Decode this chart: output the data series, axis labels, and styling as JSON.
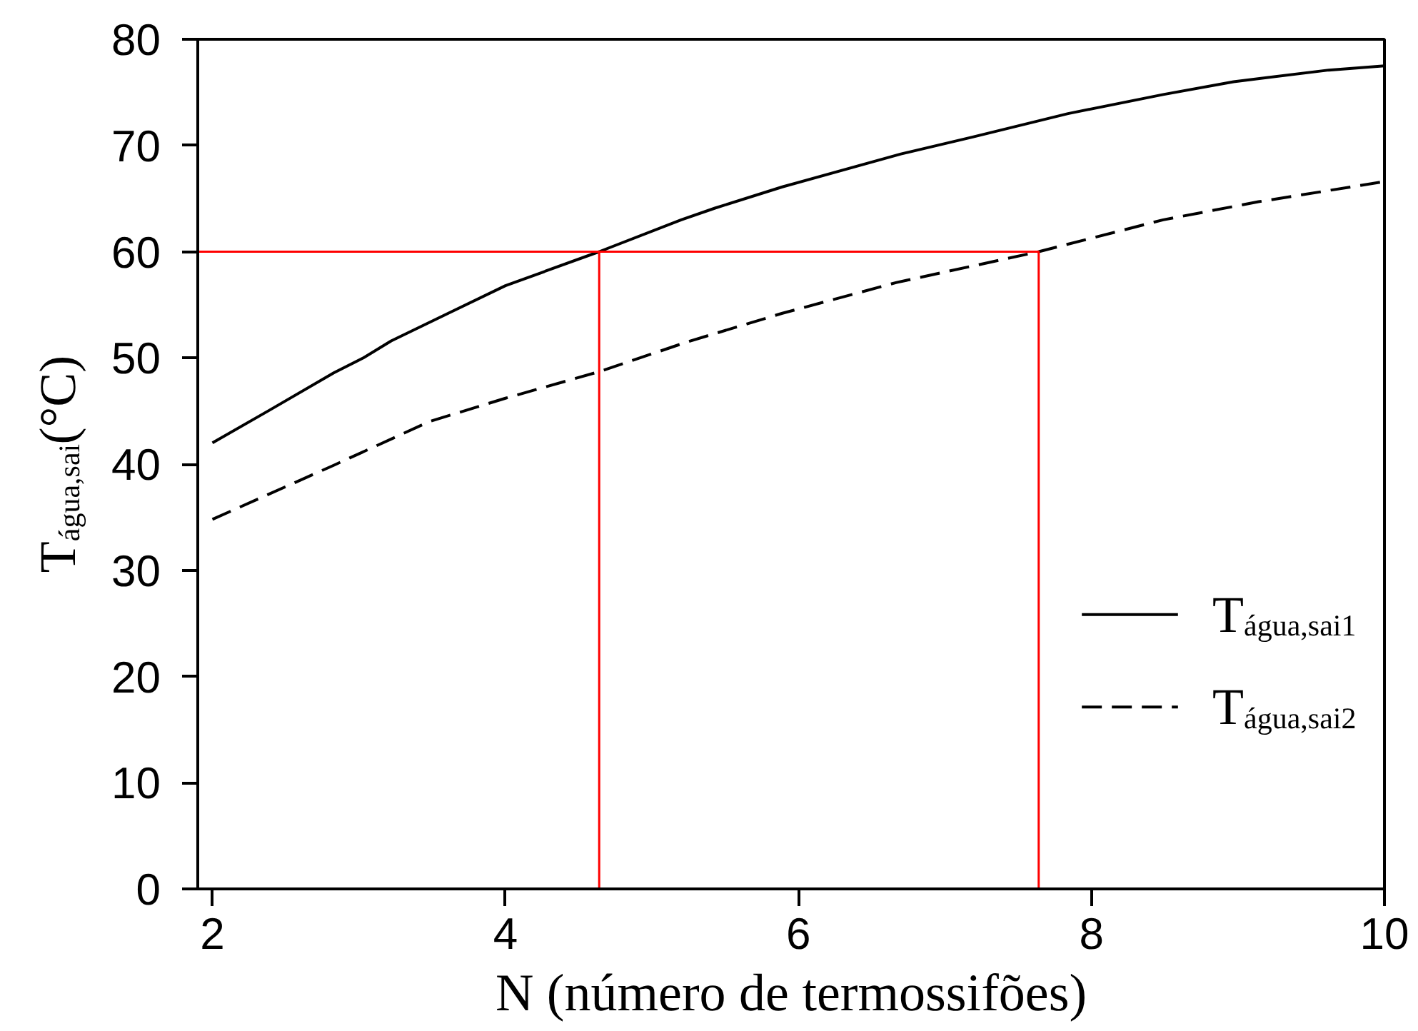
{
  "chart_data": {
    "type": "line",
    "xlabel": "N (número de termossifões)",
    "ylabel": "T$_{água,sai}$(°C)",
    "xlim": [
      1.9,
      10
    ],
    "ylim": [
      0,
      80
    ],
    "xticks": [
      2,
      4,
      6,
      8,
      10
    ],
    "yticks": [
      0,
      10,
      20,
      30,
      40,
      50,
      60,
      70,
      80
    ],
    "grid": false,
    "legend": "right",
    "series": [
      {
        "name": "T$_{água,sai1}$",
        "color": "#000000",
        "line_style": "solid",
        "x": [
          2,
          2.38,
          2.83,
          3.03,
          3.22,
          3.61,
          4.0,
          4.64,
          5.2,
          5.43,
          5.89,
          6.7,
          7.19,
          7.84,
          8.49,
          8.97,
          9.62,
          10
        ],
        "values": [
          42.0,
          45.0,
          48.6,
          50.0,
          51.6,
          54.2,
          56.8,
          60.0,
          63.0,
          64.1,
          66.1,
          69.2,
          70.8,
          73.0,
          74.8,
          76.0,
          77.1,
          77.5
        ]
      },
      {
        "name": "T$_{água,sai2}$",
        "color": "#000000",
        "line_style": "dashed",
        "x": [
          2,
          2.83,
          3.48,
          4.0,
          4.64,
          5.24,
          5.89,
          6.67,
          7.64,
          8.49,
          9.14,
          10
        ],
        "values": [
          34.8,
          39.9,
          44.0,
          46.2,
          48.7,
          51.5,
          54.2,
          57.1,
          60.0,
          63.0,
          64.7,
          66.6
        ]
      },
      {
        "color": "#ff0000",
        "line_style": "solid",
        "x": [
          1.9,
          7.64,
          7.64
        ],
        "values": [
          60,
          60,
          0
        ]
      },
      {
        "color": "#ff0000",
        "line_style": "solid",
        "x": [
          4.64,
          4.64
        ],
        "values": [
          60,
          0
        ]
      }
    ]
  }
}
